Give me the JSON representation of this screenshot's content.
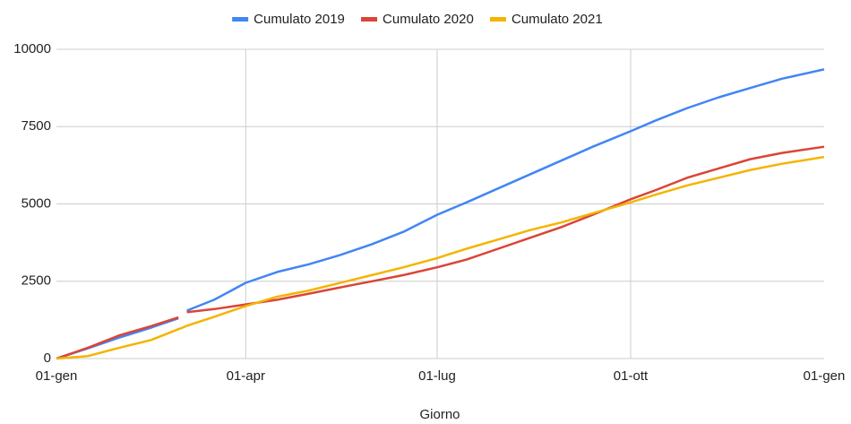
{
  "chart_data": {
    "type": "line",
    "x_label": "Giorno",
    "x": [
      0,
      15,
      30,
      45,
      58,
      60,
      62,
      75,
      90,
      105,
      120,
      135,
      150,
      165,
      181,
      195,
      210,
      225,
      240,
      255,
      273,
      285,
      300,
      315,
      330,
      345,
      365
    ],
    "series": [
      {
        "name": "Cumulato 2019",
        "color": "#4285f4",
        "values": [
          0,
          330,
          680,
          1000,
          1300,
          null,
          1550,
          1900,
          2450,
          2800,
          3050,
          3350,
          3700,
          4100,
          4650,
          5050,
          5500,
          5950,
          6400,
          6850,
          7350,
          7700,
          8100,
          8450,
          8750,
          9050,
          9350
        ]
      },
      {
        "name": "Cumulato 2020",
        "color": "#db4437",
        "values": [
          0,
          350,
          750,
          1050,
          1330,
          null,
          1500,
          1600,
          1750,
          1900,
          2100,
          2300,
          2500,
          2700,
          2950,
          3200,
          3550,
          3900,
          4250,
          4650,
          5150,
          5450,
          5850,
          6150,
          6450,
          6650,
          6850
        ]
      },
      {
        "name": "Cumulato 2021",
        "color": "#f4b400",
        "values": [
          0,
          80,
          350,
          600,
          950,
          1000,
          1060,
          1350,
          1700,
          2000,
          2200,
          2450,
          2700,
          2950,
          3250,
          3550,
          3850,
          4150,
          4400,
          4700,
          5050,
          5300,
          5600,
          5850,
          6100,
          6300,
          6520
        ]
      }
    ],
    "xlim": [
      0,
      365
    ],
    "xticks": [
      {
        "value": 0,
        "label": "01-gen"
      },
      {
        "value": 90,
        "label": "01-apr"
      },
      {
        "value": 181,
        "label": "01-lug"
      },
      {
        "value": 273,
        "label": "01-ott"
      },
      {
        "value": 365,
        "label": "01-gen"
      }
    ],
    "ylim": [
      0,
      10000
    ],
    "yticks": [
      0,
      2500,
      5000,
      7500,
      10000
    ],
    "grid": true,
    "legend": "top"
  }
}
